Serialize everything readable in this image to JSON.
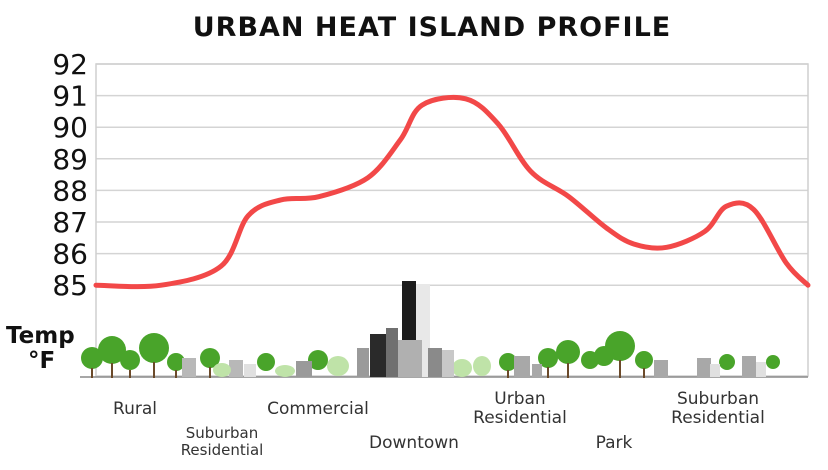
{
  "chart_data": {
    "type": "line",
    "title": "URBAN HEAT ISLAND PROFILE",
    "ylabel": [
      "Temp",
      "°F"
    ],
    "ylim": [
      85,
      92
    ],
    "yticks": [
      85,
      86,
      87,
      88,
      89,
      90,
      91,
      92
    ],
    "grid": true,
    "categories": [
      {
        "label": [
          "Rural"
        ]
      },
      {
        "label": [
          "Suburban",
          "Residential"
        ]
      },
      {
        "label": [
          "Commercial"
        ]
      },
      {
        "label": [
          "Downtown"
        ]
      },
      {
        "label": [
          "Urban",
          "Residential"
        ]
      },
      {
        "label": [
          "Park"
        ]
      },
      {
        "label": [
          "Suburban",
          "Residential"
        ]
      }
    ],
    "series": [
      {
        "color": "#f24848",
        "x": [
          0,
          0.6,
          1.15,
          1.4,
          1.7,
          2.05,
          2.5,
          2.8,
          3.0,
          3.4,
          3.7,
          4.0,
          4.35,
          4.7,
          4.95,
          5.25,
          5.6,
          5.8,
          6.05,
          6.35,
          6.55
        ],
        "y": [
          85.0,
          85.0,
          85.6,
          87.2,
          87.7,
          87.8,
          88.4,
          89.6,
          90.7,
          90.9,
          90.1,
          88.6,
          87.8,
          86.8,
          86.3,
          86.2,
          86.7,
          87.5,
          87.4,
          85.7,
          85.0
        ]
      }
    ]
  }
}
